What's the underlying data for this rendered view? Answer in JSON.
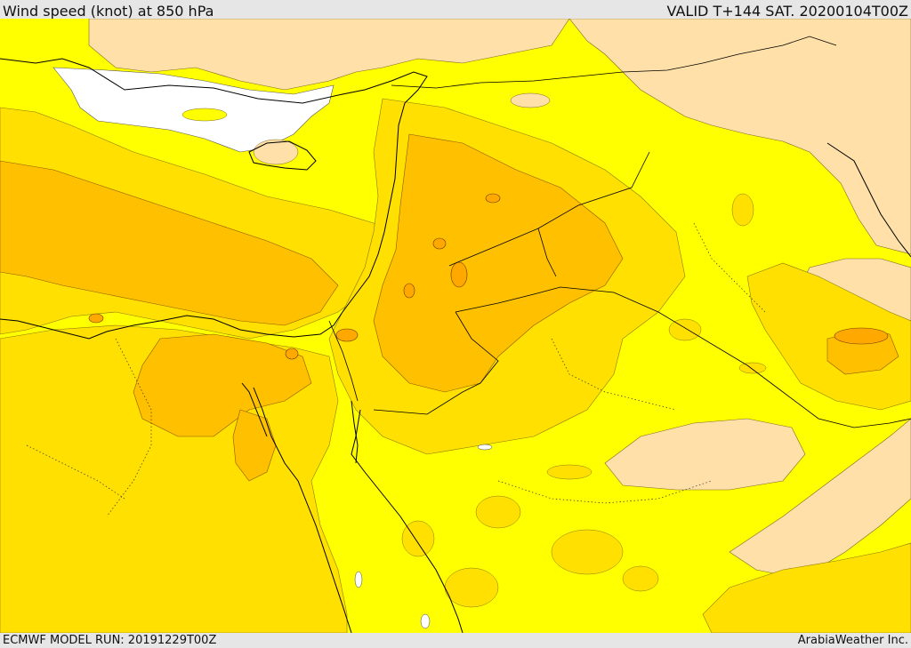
{
  "header": {
    "title": "Wind speed (knot) at 850 hPa",
    "valid_time": "VALID T+144 SAT. 20200104T00Z"
  },
  "footer": {
    "model_run": "ECMWF MODEL RUN: 20191229T00Z",
    "credit": "ArabiaWeather Inc."
  },
  "map": {
    "variable": "wind speed at 850 hPa",
    "units": "knot",
    "colors": {
      "lightest_band": "#ffffff",
      "light_band": "#ffe0a8",
      "yellow_band": "#ffff00",
      "gold_band": "#ffe000",
      "orange_band": "#ffc000",
      "dark_orange_band": "#ffa800",
      "coastline": "#000000",
      "border": "#000000"
    }
  }
}
